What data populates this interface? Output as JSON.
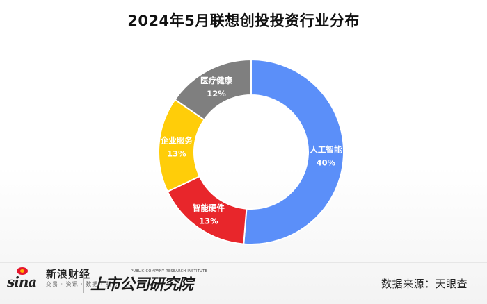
{
  "header": {
    "title": "2024年5月联想创投投资行业分布"
  },
  "chart_data": {
    "type": "pie",
    "title": "2024年5月联想创投投资行业分布",
    "donut": true,
    "categories": [
      "人工智能",
      "智能硬件",
      "企业服务",
      "医疗健康"
    ],
    "values": [
      40,
      13,
      13,
      12
    ],
    "labels": [
      "40%",
      "13%",
      "13%",
      "12%"
    ],
    "colors": [
      "#5b8ff9",
      "#e8262b",
      "#ffcd09",
      "#7f7f7f"
    ],
    "unit": "%",
    "legend": "none"
  },
  "footer": {
    "sina_name": "新浪财经",
    "sina_sub": "交易 · 资讯 · 数据 · 服务",
    "sina_word": "sina",
    "institute_name": "上市公司研究院",
    "institute_en": "PUBLIC COMPANY RESEARCH INSTITUTE",
    "source": "数据来源：天眼查"
  }
}
